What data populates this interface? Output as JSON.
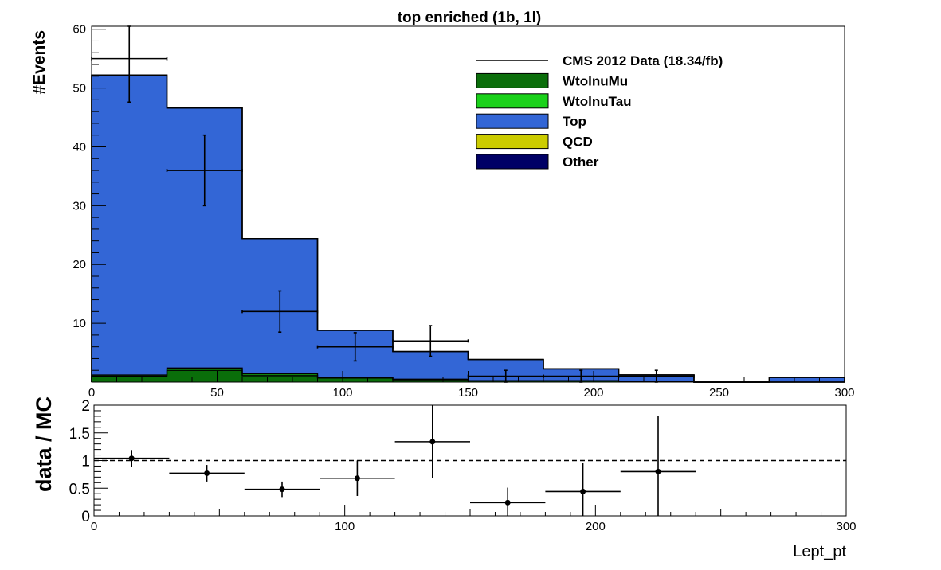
{
  "chart_data": [
    {
      "type": "bar",
      "stacked": true,
      "title": "top enriched (1b, 1l)",
      "xlabel": "",
      "ylabel": "#Events",
      "xlim": [
        0,
        300
      ],
      "ylim": [
        0,
        60.5
      ],
      "bin_edges": [
        0,
        30,
        60,
        90,
        120,
        150,
        180,
        210,
        240,
        270,
        300
      ],
      "xticks": [
        "0",
        "50",
        "100",
        "150",
        "200",
        "250",
        "300"
      ],
      "yticks": [
        "10",
        "20",
        "30",
        "40",
        "50",
        "60"
      ],
      "series": [
        {
          "name": "WtolnuMu",
          "color": "#0a6e0a",
          "values": [
            1.0,
            2.0,
            1.1,
            0.7,
            0.4,
            0.2,
            0.2,
            0.1,
            0,
            0
          ]
        },
        {
          "name": "WtolnuTau",
          "color": "#1ad11a",
          "values": [
            0.2,
            0.4,
            0.3,
            0.1,
            0.1,
            0.05,
            0.05,
            0.02,
            0,
            0
          ]
        },
        {
          "name": "Top",
          "color": "#3366d6",
          "values": [
            51.0,
            44.2,
            23.0,
            8.0,
            4.7,
            3.6,
            2.0,
            1.1,
            0,
            0.8
          ]
        },
        {
          "name": "QCD",
          "color": "#cccc00",
          "values": [
            0,
            0,
            0,
            0,
            0,
            0,
            0,
            0,
            0,
            0
          ]
        },
        {
          "name": "Other",
          "color": "#000066",
          "values": [
            0,
            0,
            0,
            0,
            0,
            0,
            0,
            0,
            0,
            0
          ]
        }
      ],
      "data_points": {
        "name": "CMS 2012 Data (18.34/fb)",
        "x": [
          15,
          45,
          75,
          105,
          135,
          165,
          195,
          225
        ],
        "xerr": 15,
        "y": [
          55,
          36,
          12,
          6,
          7,
          1,
          1,
          1
        ],
        "yerr": [
          7.4,
          6.0,
          3.5,
          2.4,
          2.6,
          1.0,
          1.0,
          1.0
        ]
      },
      "legend": {
        "placement": "top-right"
      }
    },
    {
      "type": "scatter",
      "title": "",
      "xlabel": "Lept_pt",
      "ylabel": "data / MC",
      "xlim": [
        0,
        300
      ],
      "ylim": [
        0,
        2
      ],
      "xticks": [
        "0",
        "100",
        "200",
        "300"
      ],
      "yticks": [
        "0",
        "0.5",
        "1",
        "1.5",
        "2"
      ],
      "reference_line": 1,
      "x": [
        15,
        45,
        75,
        105,
        135,
        165,
        195,
        225
      ],
      "xerr": 15,
      "y": [
        1.04,
        0.77,
        0.48,
        0.68,
        1.34,
        0.24,
        0.44,
        0.8
      ],
      "yerr": [
        0.15,
        0.15,
        0.14,
        0.32,
        0.66,
        0.27,
        0.52,
        1.0
      ]
    }
  ]
}
